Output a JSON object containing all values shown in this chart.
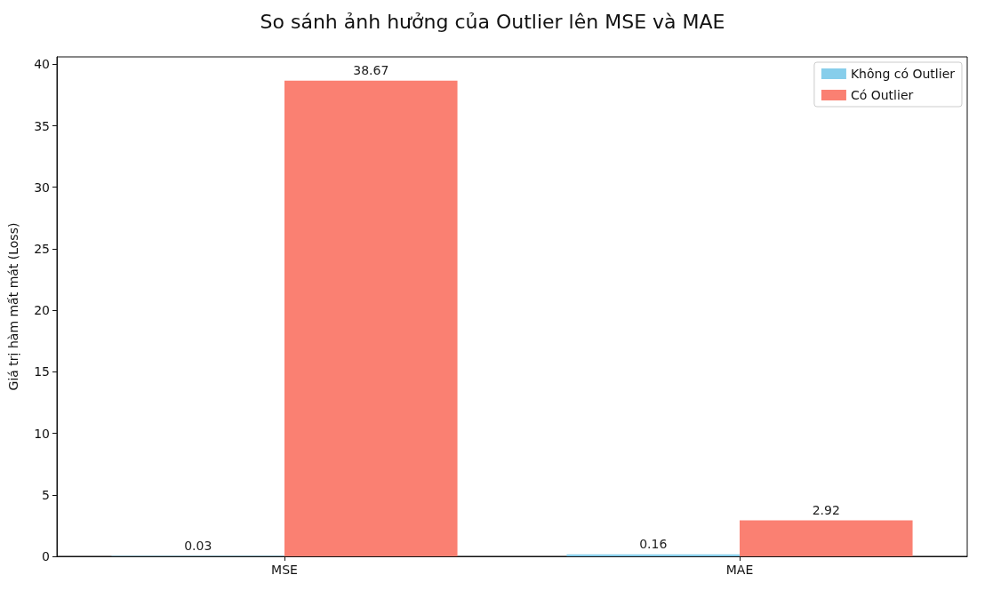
{
  "chart_data": {
    "type": "bar",
    "title": "So sánh ảnh hưởng của Outlier lên MSE và MAE",
    "ylabel": "Giá trị hàm mất mát (Loss)",
    "categories": [
      "MSE",
      "MAE"
    ],
    "series": [
      {
        "name": "Không có Outlier",
        "color": "#87ceeb",
        "values": [
          0.03,
          0.16
        ]
      },
      {
        "name": "Có Outlier",
        "color": "#fa8072",
        "values": [
          38.67,
          2.92
        ]
      }
    ],
    "ylim": [
      0,
      40.6
    ],
    "yticks": [
      0,
      5,
      10,
      15,
      20,
      25,
      30,
      35,
      40
    ],
    "data_labels": true,
    "legend": "top right",
    "grid": false
  }
}
